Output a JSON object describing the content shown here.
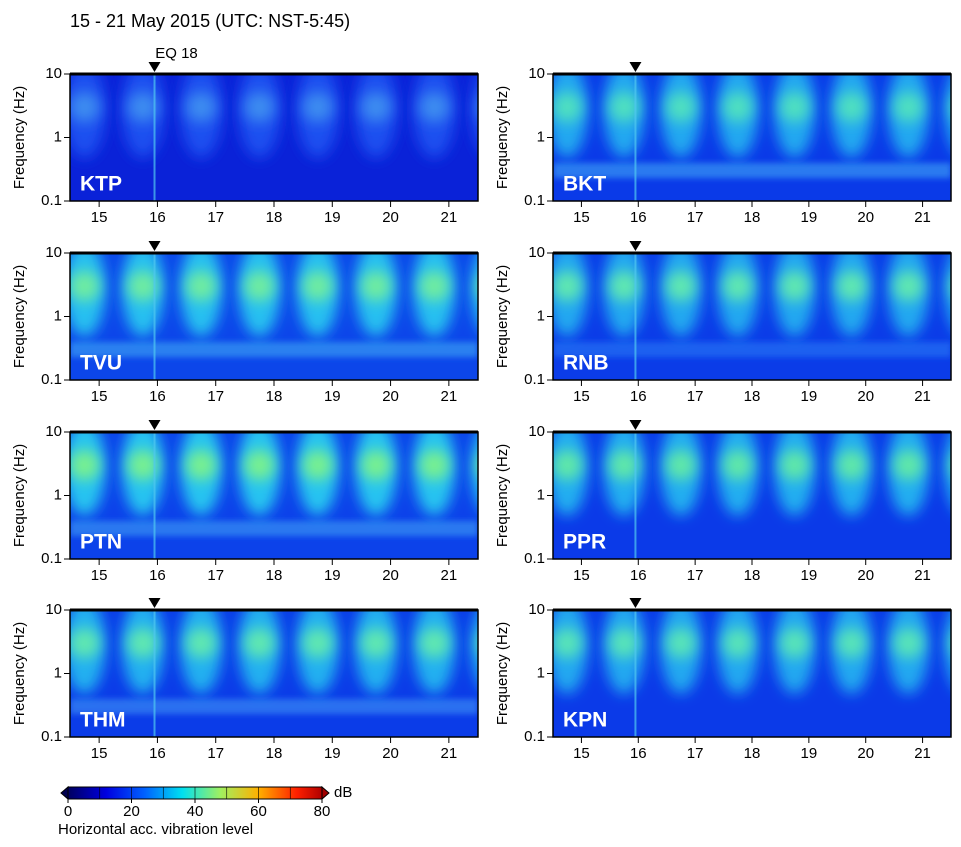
{
  "title": "15 - 21 May 2015 (UTC: NST-5:45)",
  "event": {
    "label": "EQ 18",
    "x": 15.95
  },
  "chart_data": [
    {
      "type": "spectrogram",
      "label": "KTP",
      "ylabel": "Frequency (Hz)",
      "xlim": [
        14.5,
        21.5
      ],
      "xticks": [
        15,
        16,
        17,
        18,
        19,
        20,
        21
      ],
      "ylim": [
        0.1,
        10
      ],
      "yticks": [
        0.1,
        1,
        10
      ],
      "log_y": true
    },
    {
      "type": "spectrogram",
      "label": "BKT",
      "ylabel": "Frequency (Hz)",
      "xlim": [
        14.5,
        21.5
      ],
      "xticks": [
        15,
        16,
        17,
        18,
        19,
        20,
        21
      ],
      "ylim": [
        0.1,
        10
      ],
      "yticks": [
        0.1,
        1,
        10
      ],
      "log_y": true
    },
    {
      "type": "spectrogram",
      "label": "TVU",
      "ylabel": "Frequency (Hz)",
      "xlim": [
        14.5,
        21.5
      ],
      "xticks": [
        15,
        16,
        17,
        18,
        19,
        20,
        21
      ],
      "ylim": [
        0.1,
        10
      ],
      "yticks": [
        0.1,
        1,
        10
      ],
      "log_y": true
    },
    {
      "type": "spectrogram",
      "label": "RNB",
      "ylabel": "Frequency (Hz)",
      "xlim": [
        14.5,
        21.5
      ],
      "xticks": [
        15,
        16,
        17,
        18,
        19,
        20,
        21
      ],
      "ylim": [
        0.1,
        10
      ],
      "yticks": [
        0.1,
        1,
        10
      ],
      "log_y": true
    },
    {
      "type": "spectrogram",
      "label": "PTN",
      "ylabel": "Frequency (Hz)",
      "xlim": [
        14.5,
        21.5
      ],
      "xticks": [
        15,
        16,
        17,
        18,
        19,
        20,
        21
      ],
      "ylim": [
        0.1,
        10
      ],
      "yticks": [
        0.1,
        1,
        10
      ],
      "log_y": true
    },
    {
      "type": "spectrogram",
      "label": "PPR",
      "ylabel": "Frequency (Hz)",
      "xlim": [
        14.5,
        21.5
      ],
      "xticks": [
        15,
        16,
        17,
        18,
        19,
        20,
        21
      ],
      "ylim": [
        0.1,
        10
      ],
      "yticks": [
        0.1,
        1,
        10
      ],
      "log_y": true
    },
    {
      "type": "spectrogram",
      "label": "THM",
      "ylabel": "Frequency (Hz)",
      "xlim": [
        14.5,
        21.5
      ],
      "xticks": [
        15,
        16,
        17,
        18,
        19,
        20,
        21
      ],
      "ylim": [
        0.1,
        10
      ],
      "yticks": [
        0.1,
        1,
        10
      ],
      "log_y": true
    },
    {
      "type": "spectrogram",
      "label": "KPN",
      "ylabel": "Frequency (Hz)",
      "xlim": [
        14.5,
        21.5
      ],
      "xticks": [
        15,
        16,
        17,
        18,
        19,
        20,
        21
      ],
      "ylim": [
        0.1,
        10
      ],
      "yticks": [
        0.1,
        1,
        10
      ],
      "log_y": true
    },
    {
      "type": "colorbar",
      "label": "Horizontal acc. vibration level",
      "unit": "dB",
      "xlim": [
        0,
        80
      ],
      "xticks": [
        0,
        20,
        40,
        60,
        80
      ]
    }
  ]
}
